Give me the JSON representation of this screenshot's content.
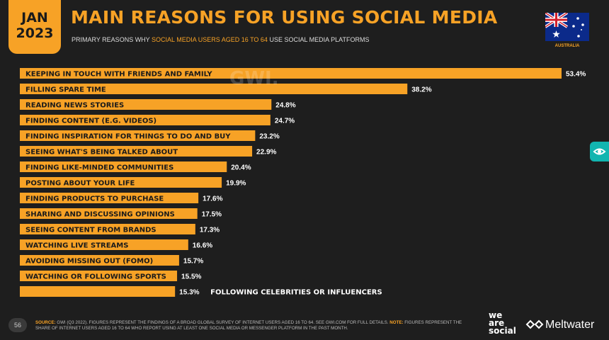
{
  "badge": {
    "month": "JAN",
    "year": "2023"
  },
  "header": {
    "title": "MAIN REASONS FOR USING SOCIAL MEDIA",
    "subtitle_pre": "PRIMARY REASONS WHY ",
    "subtitle_highlight": "SOCIAL MEDIA USERS AGED 16 TO 64",
    "subtitle_post": " USE SOCIAL MEDIA PLATFORMS",
    "country": "AUSTRALIA"
  },
  "watermark": "GWI.",
  "colors": {
    "bar": "#f7a226",
    "background": "#1e1e1e",
    "accent_teal": "#12b5b0"
  },
  "chart_data": {
    "type": "bar",
    "orientation": "horizontal",
    "categories": [
      "KEEPING IN TOUCH WITH FRIENDS AND FAMILY",
      "FILLING SPARE TIME",
      "READING NEWS STORIES",
      "FINDING CONTENT (E.G. VIDEOS)",
      "FINDING INSPIRATION FOR THINGS TO DO AND BUY",
      "SEEING WHAT'S BEING TALKED ABOUT",
      "FINDING LIKE-MINDED COMMUNITIES",
      "POSTING ABOUT YOUR LIFE",
      "FINDING PRODUCTS TO PURCHASE",
      "SHARING AND DISCUSSING OPINIONS",
      "SEEING CONTENT FROM BRANDS",
      "WATCHING LIVE STREAMS",
      "AVOIDING MISSING OUT (FOMO)",
      "WATCHING OR FOLLOWING SPORTS",
      "FOLLOWING CELEBRITIES OR INFLUENCERS"
    ],
    "values": [
      53.4,
      38.2,
      24.8,
      24.7,
      23.2,
      22.9,
      20.4,
      19.9,
      17.6,
      17.5,
      17.3,
      16.6,
      15.7,
      15.5,
      15.3
    ],
    "value_labels": [
      "53.4%",
      "38.2%",
      "24.8%",
      "24.7%",
      "23.2%",
      "22.9%",
      "20.4%",
      "19.9%",
      "17.6%",
      "17.5%",
      "17.3%",
      "16.6%",
      "15.7%",
      "15.5%",
      "15.3%"
    ],
    "label_outside_bar": [
      false,
      false,
      false,
      false,
      false,
      false,
      false,
      false,
      false,
      false,
      false,
      false,
      false,
      false,
      true
    ],
    "xlim": [
      0,
      53.4
    ],
    "grid": false,
    "legend": false
  },
  "footer": {
    "page_number": "56",
    "source_key": "SOURCE:",
    "source_text": " GWI (Q3 2022). FIGURES REPRESENT THE FINDINGS OF A BROAD GLOBAL SURVEY OF INTERNET USERS AGED 16 TO 64. SEE GWI.COM FOR FULL DETAILS. ",
    "note_key": "NOTE:",
    "note_text": " FIGURES REPRESENT THE SHARE OF INTERNET USERS AGED 16 TO 64 WHO REPORT USING AT LEAST ONE SOCIAL MEDIA OR MESSENGER PLATFORM IN THE PAST MONTH.",
    "logo_we": "we",
    "logo_are": "are",
    "logo_social": "social",
    "meltwater": "Meltwater"
  }
}
